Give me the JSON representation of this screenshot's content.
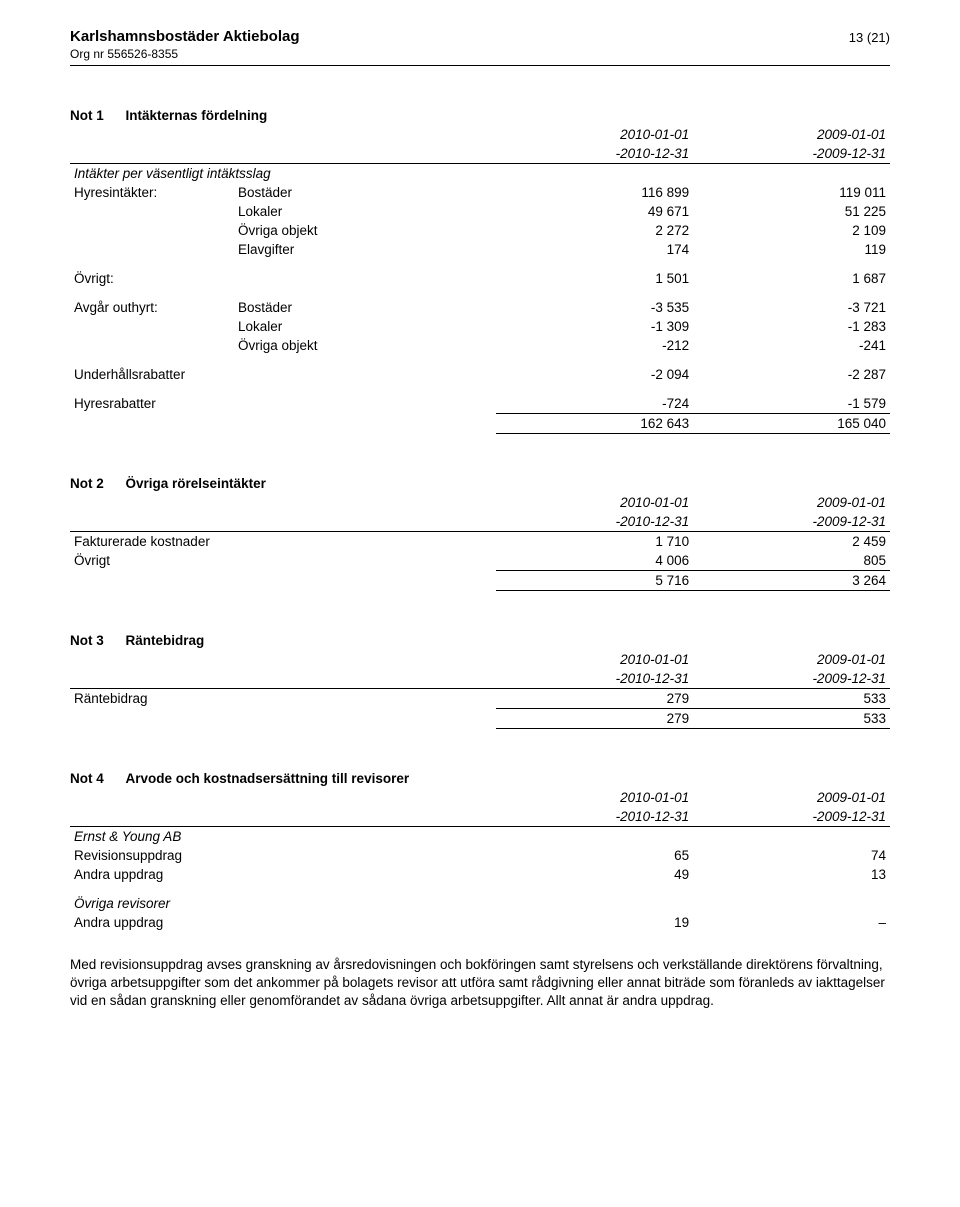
{
  "header": {
    "company": "Karlshamnsbostäder Aktiebolag",
    "orgnr": "Org nr 556526-8355",
    "pageNo": "13 (21)"
  },
  "note1": {
    "prefix": "Not 1",
    "name": "Intäkternas fördelning",
    "period_cur_a": "2010-01-01",
    "period_prev_a": "2009-01-01",
    "period_cur_b": "-2010-12-31",
    "period_prev_b": "-2009-12-31",
    "subhead1": "Intäkter per väsentligt intäktsslag",
    "r1_label": "Hyresintäkter:",
    "r1_sub": "Bostäder",
    "r1_c": "116 899",
    "r1_p": "119 011",
    "r2_sub": "Lokaler",
    "r2_c": "49 671",
    "r2_p": "51 225",
    "r3_sub": "Övriga objekt",
    "r3_c": "2 272",
    "r3_p": "2 109",
    "r4_sub": "Elavgifter",
    "r4_c": "174",
    "r4_p": "119",
    "ovrigt_label": "Övrigt:",
    "ovrigt_c": "1 501",
    "ovrigt_p": "1 687",
    "avgar_label": "Avgår outhyrt:",
    "r5_sub": "Bostäder",
    "r5_c": "-3 535",
    "r5_p": "-3 721",
    "r6_sub": "Lokaler",
    "r6_c": "-1 309",
    "r6_p": "-1 283",
    "r7_sub": "Övriga objekt",
    "r7_c": "-212",
    "r7_p": "-241",
    "uh_label": "Underhållsrabatter",
    "uh_c": "-2 094",
    "uh_p": "-2 287",
    "hr_label": "Hyresrabatter",
    "hr_c": "-724",
    "hr_p": "-1 579",
    "sum_c": "162 643",
    "sum_p": "165 040"
  },
  "note2": {
    "prefix": "Not 2",
    "name": "Övriga rörelseintäkter",
    "period_cur_a": "2010-01-01",
    "period_prev_a": "2009-01-01",
    "period_cur_b": "-2010-12-31",
    "period_prev_b": "-2009-12-31",
    "r1_label": "Fakturerade kostnader",
    "r1_c": "1 710",
    "r1_p": "2 459",
    "r2_label": "Övrigt",
    "r2_c": "4 006",
    "r2_p": "805",
    "sum_c": "5 716",
    "sum_p": "3 264"
  },
  "note3": {
    "prefix": "Not 3",
    "name": "Räntebidrag",
    "period_cur_a": "2010-01-01",
    "period_prev_a": "2009-01-01",
    "period_cur_b": "-2010-12-31",
    "period_prev_b": "-2009-12-31",
    "r1_label": "Räntebidrag",
    "r1_c": "279",
    "r1_p": "533",
    "sum_c": "279",
    "sum_p": "533"
  },
  "note4": {
    "prefix": "Not 4",
    "name": "Arvode och kostnadsersättning till revisorer",
    "period_cur_a": "2010-01-01",
    "period_prev_a": "2009-01-01",
    "period_cur_b": "-2010-12-31",
    "period_prev_b": "-2009-12-31",
    "group1": "Ernst & Young AB",
    "r1_label": "Revisionsuppdrag",
    "r1_c": "65",
    "r1_p": "74",
    "r2_label": "Andra uppdrag",
    "r2_c": "49",
    "r2_p": "13",
    "group2": "Övriga revisorer",
    "r3_label": "Andra uppdrag",
    "r3_c": "19",
    "r3_p": "–",
    "footnote": "Med revisionsuppdrag avses granskning av årsredovisningen och bokföringen samt styrelsens och verkställande direktörens förvaltning, övriga arbetsuppgifter som det ankommer på bolagets revisor att utföra samt rådgivning eller annat biträde som föranleds av iakttagelser vid en sådan granskning eller genomförandet av sådana övriga arbetsuppgifter. Allt annat är andra uppdrag."
  }
}
